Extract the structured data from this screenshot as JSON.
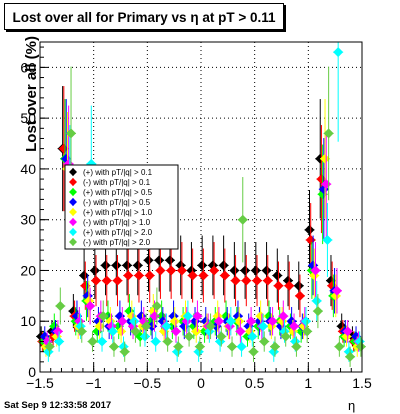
{
  "title": "Lost over all for Primary vs  η at pT > 0.11",
  "timestamp": "Sat Sep  9 12:33:58 2017",
  "chart_data": {
    "type": "scatter",
    "title": "Lost over all for Primary vs  η at pT > 0.11",
    "xlabel": "η",
    "ylabel": "Lost over all (%)",
    "xlim": [
      -1.5,
      1.5
    ],
    "ylim": [
      0,
      65
    ],
    "x_ticks": [
      -1.5,
      -1,
      -0.5,
      0,
      0.5,
      1,
      1.5
    ],
    "x_tick_labels": [
      "−1.5",
      "−1",
      "−0.5",
      "0",
      "0.5",
      "1",
      "1.5"
    ],
    "y_ticks": [
      0,
      10,
      20,
      30,
      40,
      50,
      60
    ],
    "y_tick_labels": [
      "0",
      "10",
      "20",
      "30",
      "40",
      "50",
      "60"
    ],
    "grid": true,
    "legend_position": "left",
    "series": [
      {
        "name": "(+) with pT/|q| > 0.1",
        "color": "#000000",
        "x": [
          -1.45,
          -1.35,
          -1.25,
          -1.15,
          -1.05,
          -0.95,
          -0.85,
          -0.75,
          -0.65,
          -0.55,
          -0.45,
          -0.35,
          -0.25,
          -0.15,
          -0.05,
          0.05,
          0.15,
          0.25,
          0.35,
          0.45,
          0.55,
          0.65,
          0.75,
          0.85,
          0.95,
          1.05,
          1.15,
          1.25,
          1.35,
          1.45
        ],
        "y": [
          7,
          8,
          44,
          12,
          19,
          20,
          21,
          21,
          21,
          21,
          22,
          22,
          22,
          21,
          20,
          21,
          21,
          21,
          20,
          20,
          20,
          20,
          19,
          18,
          17,
          28,
          42,
          18,
          9,
          7
        ]
      },
      {
        "name": "(-) with pT/|q| > 0.1",
        "color": "#ff0000",
        "x": [
          -1.45,
          -1.35,
          -1.25,
          -1.15,
          -1.05,
          -0.95,
          -0.85,
          -0.75,
          -0.65,
          -0.55,
          -0.45,
          -0.35,
          -0.25,
          -0.15,
          -0.05,
          0.05,
          0.15,
          0.25,
          0.35,
          0.45,
          0.55,
          0.65,
          0.75,
          0.85,
          0.95,
          1.05,
          1.15,
          1.25,
          1.35,
          1.45
        ],
        "y": [
          6,
          7,
          44,
          11,
          17,
          18,
          18,
          18,
          19,
          19,
          19,
          20,
          20,
          20,
          19,
          19,
          20,
          19,
          18,
          18,
          18,
          18,
          17,
          17,
          15,
          26,
          38,
          17,
          8,
          6
        ]
      },
      {
        "name": "(+) with pT/|q| > 0.5",
        "color": "#00ff00",
        "x": [
          -1.45,
          -1.35,
          -1.25,
          -1.15,
          -1.05,
          -0.95,
          -0.85,
          -0.75,
          -0.65,
          -0.55,
          -0.45,
          -0.35,
          -0.25,
          -0.15,
          -0.05,
          0.05,
          0.15,
          0.25,
          0.35,
          0.45,
          0.55,
          0.65,
          0.75,
          0.85,
          0.95,
          1.05,
          1.15,
          1.25,
          1.35,
          1.45
        ],
        "y": [
          6,
          9,
          42,
          10,
          14,
          8,
          11,
          9,
          12,
          7,
          10,
          11,
          9,
          10,
          9,
          8,
          10,
          11,
          10,
          7,
          9,
          11,
          10,
          9,
          8,
          20,
          35,
          15,
          7,
          6
        ]
      },
      {
        "name": "(-) with pT/|q| > 0.5",
        "color": "#0000ff",
        "x": [
          -1.45,
          -1.35,
          -1.25,
          -1.15,
          -1.05,
          -0.95,
          -0.85,
          -0.75,
          -0.65,
          -0.55,
          -0.45,
          -0.35,
          -0.25,
          -0.15,
          -0.05,
          0.05,
          0.15,
          0.25,
          0.35,
          0.45,
          0.55,
          0.65,
          0.75,
          0.85,
          0.95,
          1.05,
          1.15,
          1.25,
          1.35,
          1.45
        ],
        "y": [
          7,
          8,
          42,
          11,
          15,
          10,
          9,
          11,
          10,
          11,
          9,
          10,
          11,
          9,
          10,
          10,
          9,
          10,
          11,
          9,
          10,
          10,
          9,
          10,
          9,
          21,
          36,
          16,
          8,
          7
        ]
      },
      {
        "name": "(+) with pT/|q| > 1.0",
        "color": "#ffff00",
        "x": [
          -1.45,
          -1.35,
          -1.25,
          -1.15,
          -1.05,
          -0.95,
          -0.85,
          -0.75,
          -0.65,
          -0.55,
          -0.45,
          -0.35,
          -0.25,
          -0.15,
          -0.05,
          0.05,
          0.15,
          0.25,
          0.35,
          0.45,
          0.55,
          0.65,
          0.75,
          0.85,
          0.95,
          1.05,
          1.15,
          1.25,
          1.35,
          1.45
        ],
        "y": [
          5,
          7,
          40,
          9,
          14,
          9,
          10,
          8,
          11,
          9,
          12,
          8,
          10,
          11,
          8,
          9,
          11,
          9,
          10,
          8,
          11,
          9,
          10,
          8,
          9,
          19,
          42,
          15,
          7,
          5
        ]
      },
      {
        "name": "(-) with pT/|q| > 1.0",
        "color": "#ff00ff",
        "x": [
          -1.45,
          -1.35,
          -1.25,
          -1.15,
          -1.05,
          -0.95,
          -0.85,
          -0.75,
          -0.65,
          -0.55,
          -0.45,
          -0.35,
          -0.25,
          -0.15,
          -0.05,
          0.05,
          0.15,
          0.25,
          0.35,
          0.45,
          0.55,
          0.65,
          0.75,
          0.85,
          0.95,
          1.05,
          1.15,
          1.25,
          1.35,
          1.45
        ],
        "y": [
          6,
          8,
          41,
          10,
          13,
          11,
          9,
          10,
          9,
          10,
          11,
          9,
          8,
          10,
          11,
          9,
          10,
          9,
          8,
          10,
          9,
          10,
          11,
          9,
          10,
          20,
          37,
          16,
          8,
          6
        ]
      },
      {
        "name": "(+) with pT/|q| > 2.0",
        "color": "#00ffff",
        "x": [
          -1.45,
          -1.35,
          -1.25,
          -1.15,
          -1.05,
          -0.95,
          -0.85,
          -0.75,
          -0.65,
          -0.55,
          -0.45,
          -0.35,
          -0.25,
          -0.15,
          -0.05,
          0.05,
          0.15,
          0.25,
          0.35,
          0.45,
          0.55,
          0.65,
          0.75,
          0.85,
          0.95,
          1.05,
          1.15,
          1.25,
          1.35,
          1.45
        ],
        "y": [
          4,
          6,
          38,
          9,
          41,
          6,
          8,
          5,
          10,
          7,
          6,
          9,
          4,
          11,
          4,
          8,
          6,
          10,
          5,
          7,
          9,
          4,
          8,
          6,
          10,
          14,
          26,
          63,
          4,
          6
        ]
      },
      {
        "name": "(-) with pT/|q| > 2.0",
        "color": "#66cc44",
        "x": [
          -1.45,
          -1.35,
          -1.25,
          -1.15,
          -1.05,
          -0.95,
          -0.85,
          -0.75,
          -0.65,
          -0.55,
          -0.45,
          -0.35,
          -0.25,
          -0.15,
          -0.05,
          0.05,
          0.15,
          0.25,
          0.35,
          0.45,
          0.55,
          0.65,
          0.75,
          0.85,
          0.95,
          1.05,
          1.15,
          1.25,
          1.35,
          1.45
        ],
        "y": [
          5,
          13,
          47,
          8,
          6,
          11,
          5,
          4,
          8,
          9,
          13,
          6,
          5,
          7,
          5,
          9,
          7,
          5,
          30,
          4,
          6,
          5,
          7,
          5,
          8,
          12,
          47,
          5,
          3,
          5
        ]
      }
    ]
  }
}
